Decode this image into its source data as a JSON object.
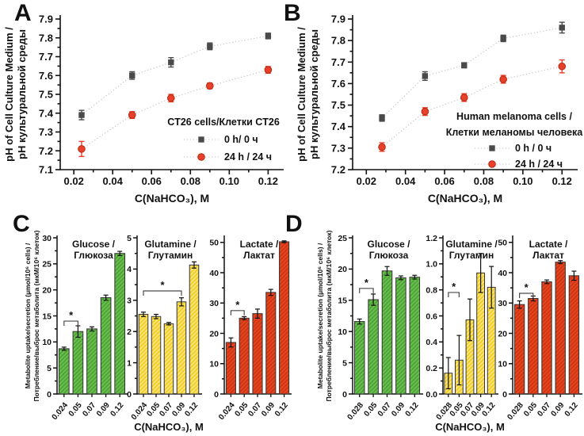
{
  "figure": {
    "background": "#ffffff",
    "panel_letters": [
      "A",
      "B",
      "C",
      "D"
    ]
  },
  "colors": {
    "axis": "#111111",
    "series_0h": "#4a4a4a",
    "series_24h": "#e8402a",
    "series_24h_edge": "#b3290f",
    "connector": "#c3c3c3",
    "bracket": "#4a4a4a",
    "green_fill": "#69bf4c",
    "green_hatch": "#4a9e36",
    "yellow_fill": "#f2cf27",
    "yellow_hatch": "#f9e788",
    "red_fill": "#e8431f",
    "red_hatch": "#c63512"
  },
  "chart_data": [
    {
      "id": "A",
      "type": "line",
      "xlabel": "C(NaHCO₃), M",
      "ylabel_lines": [
        "pH of Cell Culture Medium /",
        "pH культуральной среды"
      ],
      "xlim": [
        0.013,
        0.128
      ],
      "ylim": [
        7.1,
        7.9
      ],
      "xtick_vals": [
        0.02,
        0.04,
        0.06,
        0.08,
        0.1,
        0.12
      ],
      "xtick_labels": [
        "0.02",
        "0.04",
        "0.06",
        "0.08",
        "0.10",
        "0.12"
      ],
      "ytick_vals": [
        7.1,
        7.2,
        7.3,
        7.4,
        7.5,
        7.6,
        7.7,
        7.8,
        7.9
      ],
      "ytick_labels": [
        "7.1",
        "7.2",
        "7.3",
        "7.4",
        "7.5",
        "7.6",
        "7.7",
        "7.8",
        "7.9"
      ],
      "legend_title_lines": [
        "CT26 cells/Клетки CT26"
      ],
      "legend_position": "lower right",
      "series": [
        {
          "name": "0 h/ 0 ч",
          "marker": "square",
          "color": "#4a4a4a",
          "x": [
            0.024,
            0.05,
            0.07,
            0.09,
            0.12
          ],
          "y": [
            7.39,
            7.6,
            7.67,
            7.755,
            7.81
          ],
          "yerr": [
            0.025,
            0.02,
            0.025,
            0.018,
            0.015
          ]
        },
        {
          "name": "24 h / 24 ч",
          "marker": "circle",
          "color": "#e8402a",
          "x": [
            0.024,
            0.05,
            0.07,
            0.09,
            0.12
          ],
          "y": [
            7.21,
            7.39,
            7.48,
            7.545,
            7.63
          ],
          "yerr": [
            0.04,
            0.018,
            0.02,
            0.015,
            0.018
          ]
        }
      ]
    },
    {
      "id": "B",
      "type": "line",
      "xlabel": "C(NaHCO₃), M",
      "ylabel_lines": [
        "pH of Cell Culture Medium /",
        "pH культуральной среды"
      ],
      "xlim": [
        0.013,
        0.128
      ],
      "ylim": [
        7.2,
        7.9
      ],
      "xtick_vals": [
        0.02,
        0.04,
        0.06,
        0.08,
        0.1,
        0.12
      ],
      "xtick_labels": [
        "0.02",
        "0.04",
        "0.06",
        "0.08",
        "0.10",
        "0.12"
      ],
      "ytick_vals": [
        7.2,
        7.3,
        7.4,
        7.5,
        7.6,
        7.7,
        7.8,
        7.9
      ],
      "ytick_labels": [
        "7.2",
        "7.3",
        "7.4",
        "7.5",
        "7.6",
        "7.7",
        "7.8",
        "7.9"
      ],
      "legend_title_lines": [
        "Human melanoma cells /",
        "Клетки меланомы человека"
      ],
      "legend_position": "lower right",
      "series": [
        {
          "name": "0 h / 0 ч",
          "marker": "square",
          "color": "#4a4a4a",
          "x": [
            0.028,
            0.05,
            0.07,
            0.09,
            0.12
          ],
          "y": [
            7.44,
            7.635,
            7.685,
            7.81,
            7.86
          ],
          "yerr": [
            0.015,
            0.02,
            0.012,
            0.015,
            0.025
          ]
        },
        {
          "name": "24 h / 24 ч",
          "marker": "circle",
          "color": "#e8402a",
          "x": [
            0.028,
            0.05,
            0.07,
            0.09,
            0.12
          ],
          "y": [
            7.305,
            7.47,
            7.535,
            7.62,
            7.68
          ],
          "yerr": [
            0.02,
            0.018,
            0.018,
            0.018,
            0.03
          ]
        }
      ]
    },
    {
      "id": "C",
      "type": "bar",
      "xlabel": "C(NaHCO₃), M",
      "ylabel_lines": [
        "Metabolite uptake/secretion (µmol/10⁶ cells) /",
        "Потребление/выброс метаболита (мкМ/10⁶ клеток)"
      ],
      "categories": [
        "0.024",
        "0.05",
        "0.07",
        "0.09",
        "0.12"
      ],
      "subplots": [
        {
          "title_lines": [
            "Glucose /",
            "Глюкоза"
          ],
          "color_key": "green",
          "values": [
            8.7,
            12.0,
            12.5,
            18.5,
            27.0
          ],
          "errors": [
            0.3,
            1.1,
            0.4,
            0.5,
            0.4
          ],
          "ylim": [
            0,
            30
          ],
          "ytick_vals": [
            0,
            5,
            10,
            15,
            20,
            25,
            30
          ],
          "ytick_labels": [
            "0",
            "5",
            "10",
            "15",
            "20",
            "25",
            "30"
          ],
          "sig": {
            "from": 0,
            "to": 1,
            "y": 14.0,
            "label": "*"
          }
        },
        {
          "title_lines": [
            "Glutamine /",
            "Глутамин"
          ],
          "color_key": "yellow",
          "values": [
            2.55,
            2.48,
            2.25,
            2.95,
            4.13
          ],
          "errors": [
            0.07,
            0.07,
            0.04,
            0.13,
            0.1
          ],
          "ylim": [
            0,
            5
          ],
          "ytick_vals": [
            0,
            1,
            2,
            3,
            4,
            5
          ],
          "ytick_labels": [
            "0",
            "1",
            "2",
            "3",
            "4",
            "5"
          ],
          "sig": {
            "from": 0,
            "to": 3,
            "y": 3.3,
            "label": "*"
          }
        },
        {
          "title_lines": [
            "Lactate /",
            "Лактат"
          ],
          "color_key": "red",
          "values": [
            17.0,
            25.0,
            26.5,
            33.5,
            50.2
          ],
          "errors": [
            1.5,
            0.5,
            1.5,
            1.0,
            0.3
          ],
          "ylim": [
            0,
            51.5
          ],
          "ytick_vals": [
            0,
            10,
            20,
            30,
            40,
            50
          ],
          "ytick_labels": [
            "0",
            "10",
            "20",
            "30",
            "40",
            "50"
          ],
          "sig": {
            "from": 0,
            "to": 1,
            "y": 27.5,
            "label": "*"
          }
        }
      ]
    },
    {
      "id": "D",
      "type": "bar",
      "xlabel": "C(NaHCO₃), M",
      "ylabel_lines": [
        "Metabolite uptake/secretion (µmol/10⁶ cells) /",
        "Потребление/выброс метаболита (мкМ/10⁶ клеток)"
      ],
      "categories": [
        "0.028",
        "0.05",
        "0.07",
        "0.09",
        "0.12"
      ],
      "subplots": [
        {
          "title_lines": [
            "Glucose /",
            "Глюкоза"
          ],
          "color_key": "green",
          "values": [
            11.6,
            15.1,
            19.7,
            18.6,
            18.7
          ],
          "errors": [
            0.4,
            0.9,
            0.7,
            0.3,
            0.3
          ],
          "ylim": [
            0,
            25
          ],
          "ytick_vals": [
            0,
            5,
            10,
            15,
            20,
            25
          ],
          "ytick_labels": [
            "0",
            "5",
            "10",
            "15",
            "20",
            "25"
          ],
          "sig": {
            "from": 0,
            "to": 1,
            "y": 16.9,
            "label": "*"
          }
        },
        {
          "title_lines": [
            "Glutamine /",
            "Глутамин"
          ],
          "color_key": "yellow",
          "values": [
            0.16,
            0.26,
            0.57,
            0.93,
            0.82
          ],
          "errors": [
            0.12,
            0.19,
            0.16,
            0.15,
            0.16
          ],
          "ylim": [
            0,
            1.2
          ],
          "ytick_vals": [
            0,
            0.2,
            0.4,
            0.6,
            0.8,
            1.0,
            1.2
          ],
          "ytick_labels": [
            "0.0",
            "0.2",
            "0.4",
            "0.6",
            "0.8",
            "1.0",
            "1.2"
          ],
          "sig": {
            "from": 0,
            "to": 1,
            "y": 0.78,
            "label": "*"
          }
        },
        {
          "title_lines": [
            "Lactate /",
            "Лактат"
          ],
          "color_key": "red",
          "values": [
            29.5,
            31.5,
            37.0,
            43.5,
            39.0
          ],
          "errors": [
            1.2,
            0.8,
            0.6,
            0.5,
            1.5
          ],
          "ylim": [
            0,
            51.5
          ],
          "ytick_vals": [
            0,
            10,
            20,
            30,
            40,
            50
          ],
          "ytick_labels": [
            "0",
            "10",
            "20",
            "30",
            "40",
            "50"
          ],
          "sig": {
            "from": 0,
            "to": 1,
            "y": 33.2,
            "label": "*"
          }
        }
      ]
    }
  ]
}
